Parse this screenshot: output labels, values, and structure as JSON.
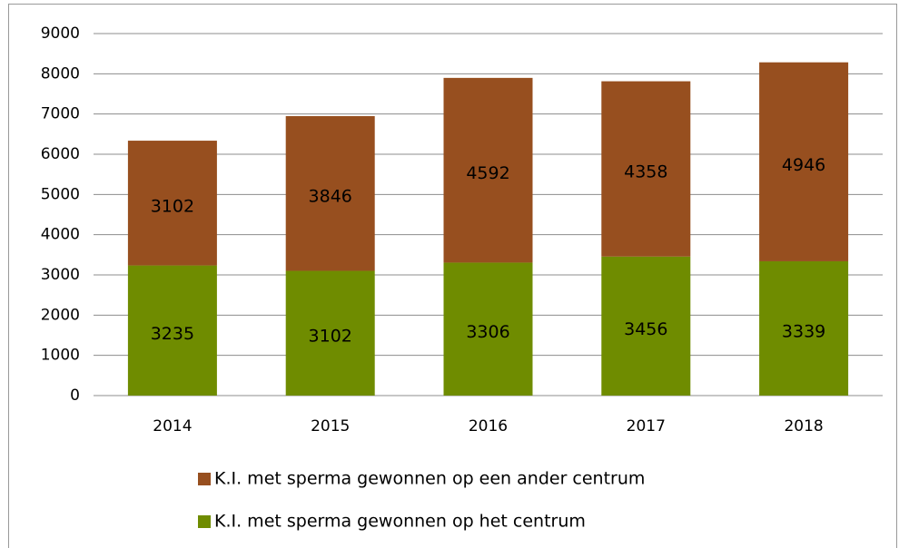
{
  "chart_data": {
    "type": "stacked_bar",
    "categories": [
      "2014",
      "2015",
      "2016",
      "2017",
      "2018"
    ],
    "series": [
      {
        "name": "K.I. met sperma gewonnen op het centrum",
        "color": "#6f8c00",
        "values": [
          3235,
          3102,
          3306,
          3456,
          3339
        ]
      },
      {
        "name": "K.I. met sperma gewonnen op een ander centrum",
        "color": "#974f1f",
        "values": [
          3102,
          3846,
          4592,
          4358,
          4946
        ]
      }
    ],
    "ylim": [
      0,
      9000
    ],
    "yticks": [
      0,
      1000,
      2000,
      3000,
      4000,
      5000,
      6000,
      7000,
      8000,
      9000
    ],
    "grid": true
  }
}
